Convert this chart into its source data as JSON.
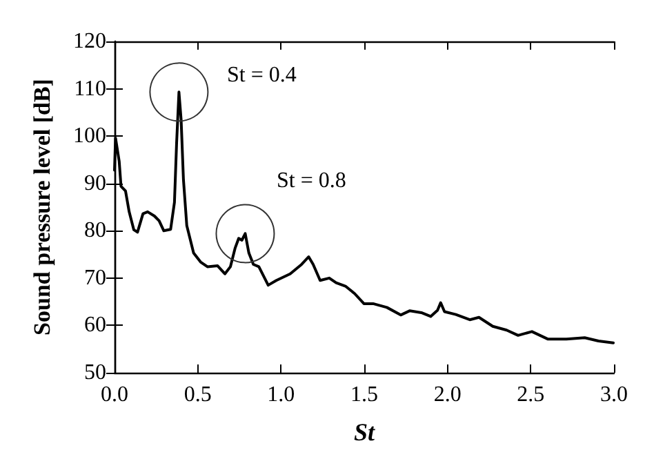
{
  "chart_data": {
    "type": "line",
    "xlabel": "St",
    "ylabel": "Sound pressure level [dB]",
    "x": [
      0,
      0.006,
      0.028,
      0.039,
      0.066,
      0.088,
      0.116,
      0.138,
      0.171,
      0.199,
      0.24,
      0.268,
      0.296,
      0.337,
      0.36,
      0.373,
      0.387,
      0.4,
      0.414,
      0.434,
      0.475,
      0.517,
      0.558,
      0.619,
      0.663,
      0.696,
      0.724,
      0.746,
      0.765,
      0.785,
      0.807,
      0.834,
      0.867,
      0.923,
      0.972,
      1.055,
      1.124,
      1.166,
      1.193,
      1.235,
      1.29,
      1.331,
      1.387,
      1.443,
      1.498,
      1.553,
      1.636,
      1.719,
      1.774,
      1.843,
      1.899,
      1.94,
      1.959,
      1.982,
      2.05,
      2.134,
      2.189,
      2.272,
      2.355,
      2.424,
      2.507,
      2.604,
      2.714,
      2.824,
      2.907,
      2.996
    ],
    "series": [
      {
        "color": "#000000",
        "values": [
          92.8,
          99.6,
          94.7,
          89.4,
          88.4,
          84,
          80.2,
          79.7,
          83.6,
          84,
          83.1,
          82.1,
          80,
          80.3,
          86,
          98.6,
          109.3,
          103.5,
          90.8,
          81.1,
          75.3,
          73.4,
          72.4,
          72.6,
          70.9,
          72.4,
          76.3,
          78.4,
          78,
          79.4,
          75.3,
          72.9,
          72.4,
          68.5,
          69.5,
          70.9,
          72.9,
          74.5,
          72.9,
          69.5,
          70,
          69,
          68.3,
          66.7,
          64.6,
          64.6,
          63.8,
          62.2,
          63.1,
          62.7,
          61.9,
          63.2,
          64.8,
          62.9,
          62.3,
          61.2,
          61.7,
          59.8,
          59,
          57.9,
          58.7,
          57.1,
          57.1,
          57.4,
          56.7,
          56.3
        ]
      }
    ],
    "xlim": [
      0,
      3
    ],
    "xticks": [
      {
        "value": 0,
        "label": "0.0"
      },
      {
        "value": 0.5,
        "label": "0.5"
      },
      {
        "value": 1,
        "label": "1.0"
      },
      {
        "value": 1.5,
        "label": "1.5"
      },
      {
        "value": 2,
        "label": "2.0"
      },
      {
        "value": 2.5,
        "label": "2.5"
      },
      {
        "value": 3,
        "label": "3.0"
      }
    ],
    "ylim": [
      50,
      120
    ],
    "yticks": [
      50,
      60,
      70,
      80,
      90,
      100,
      110,
      120
    ],
    "annotations": [
      {
        "text": "St = 0.4",
        "x": 0.387,
        "y": 109.3
      },
      {
        "text": "St = 0.8",
        "x": 0.785,
        "y": 79.4
      }
    ],
    "marker": "none",
    "line_style": "solid"
  }
}
